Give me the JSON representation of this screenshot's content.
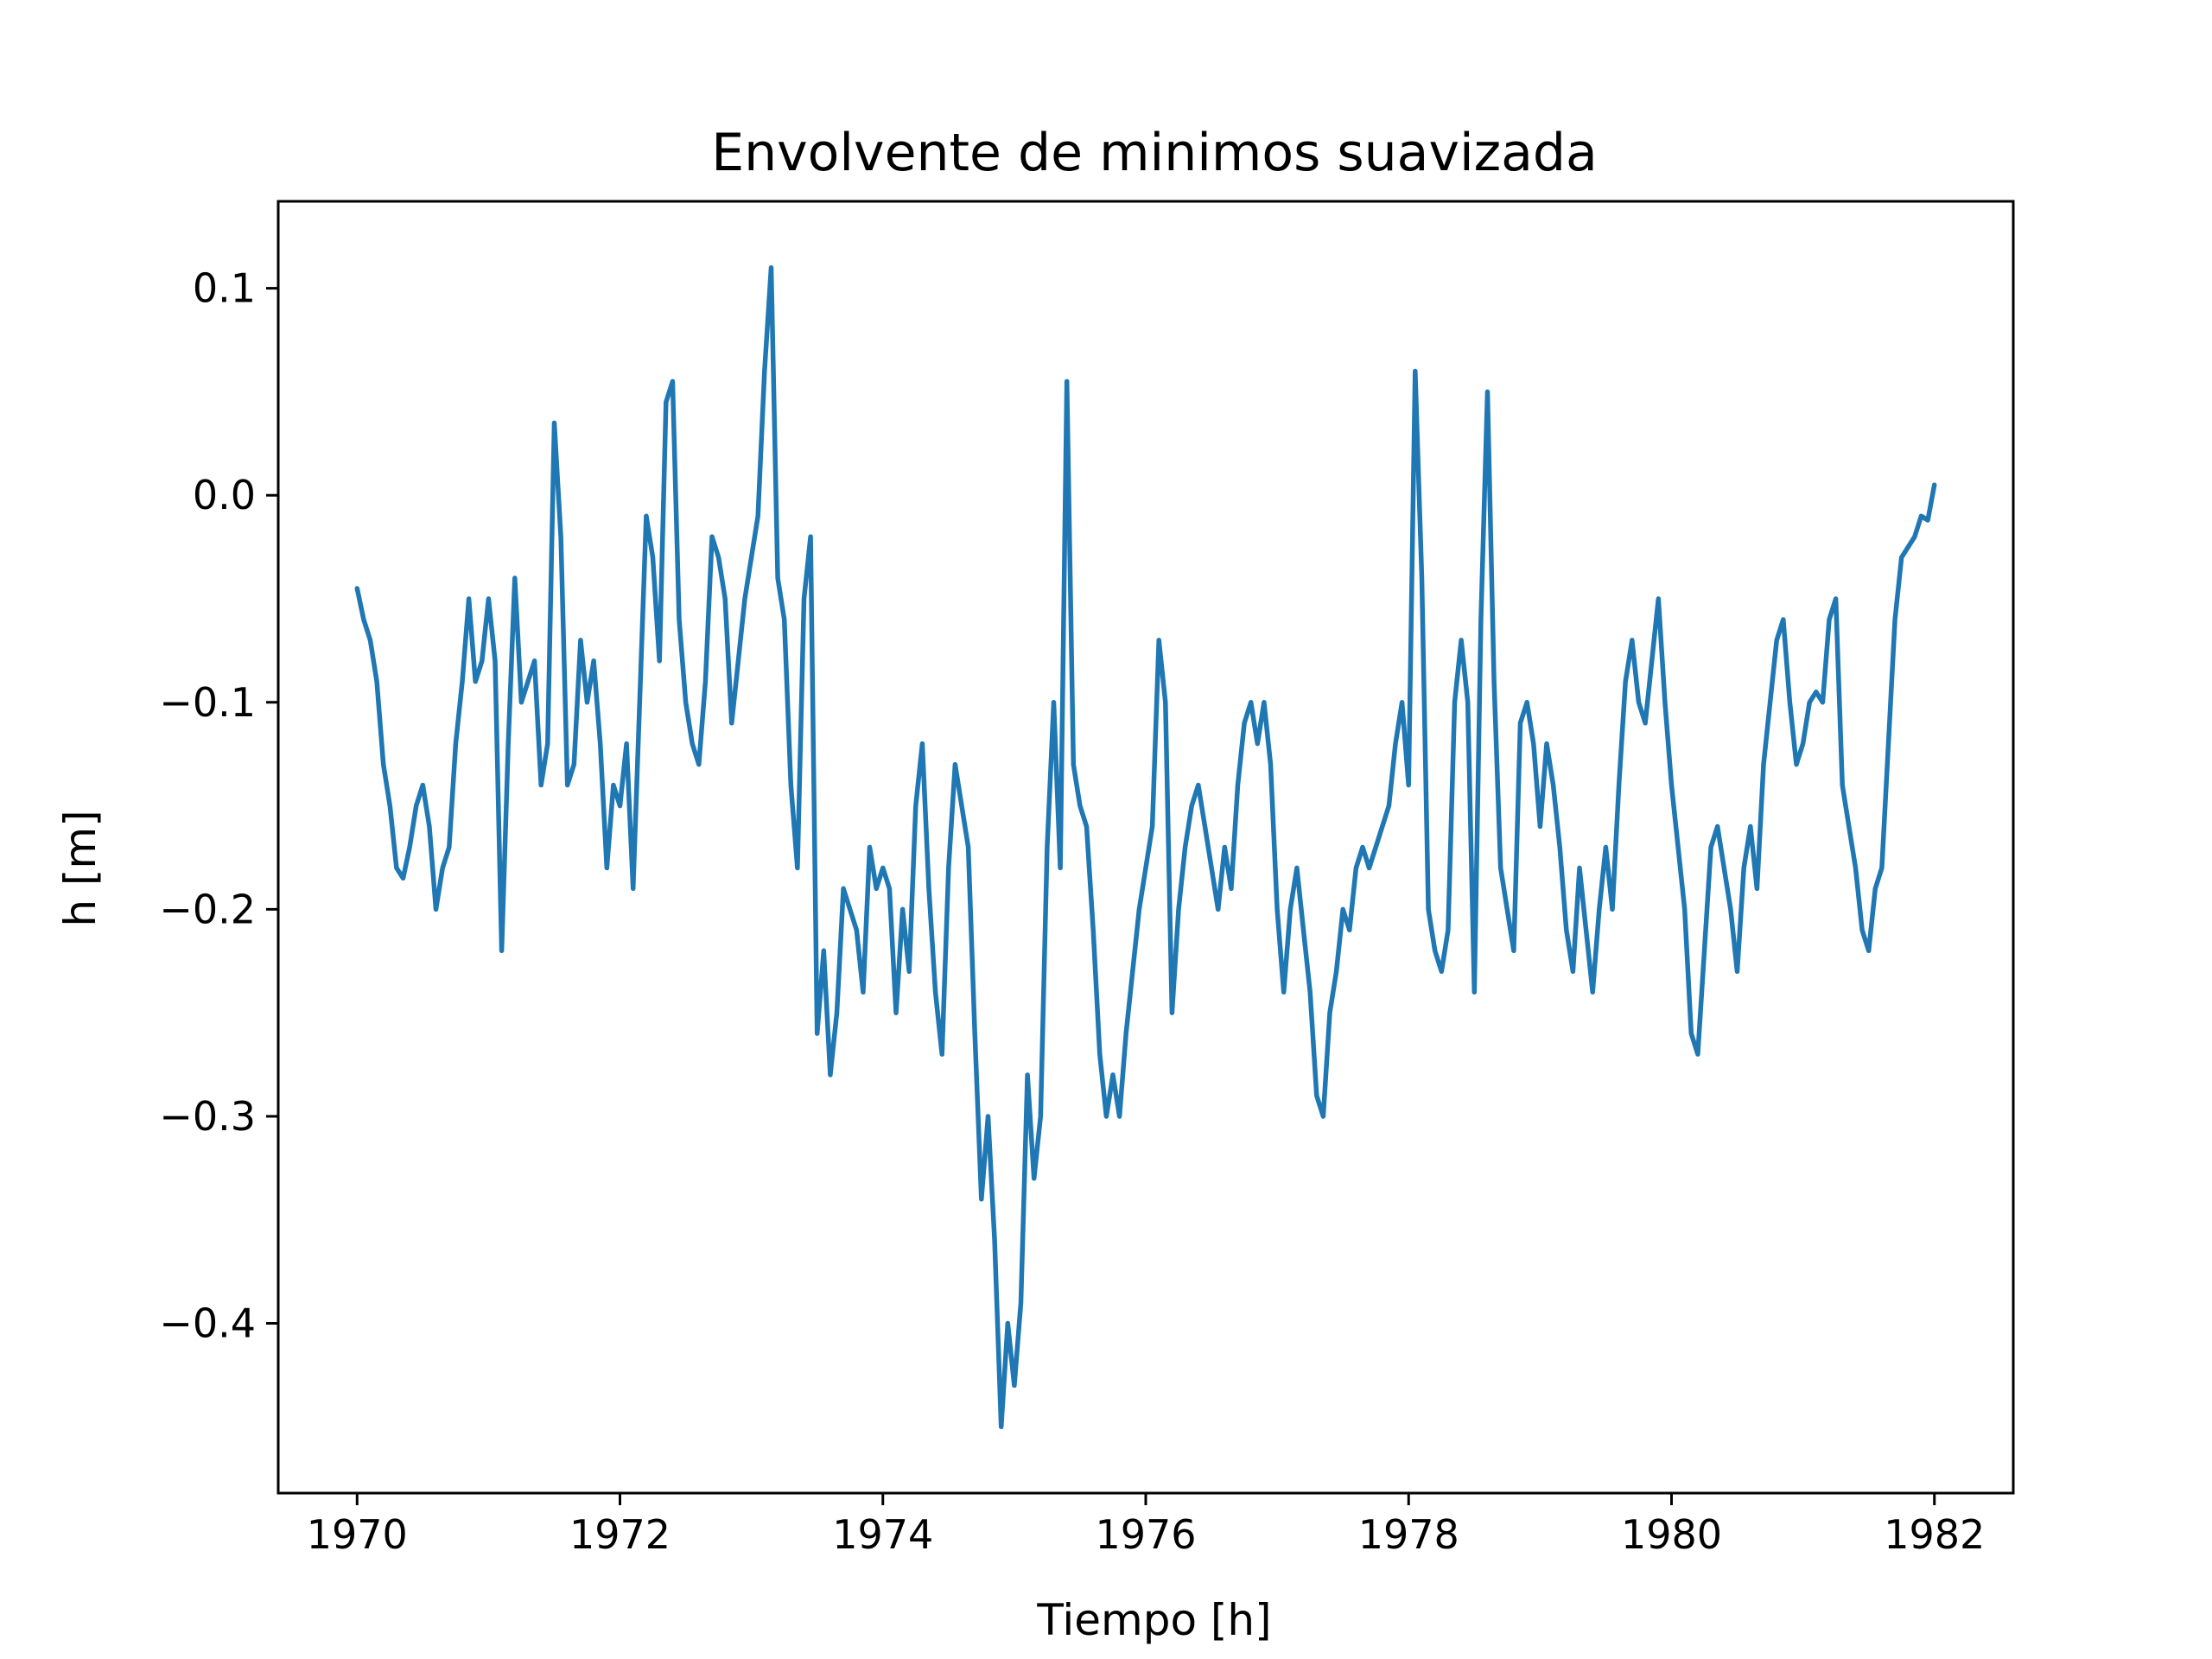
{
  "chart_data": {
    "type": "line",
    "title": "Envolvente de minimos suavizada",
    "xlabel": "Tiempo [h]",
    "ylabel": "h [m]",
    "xlim": [
      1969.4,
      1982.6
    ],
    "ylim": [
      -0.482,
      0.142
    ],
    "xticks": [
      1970,
      1972,
      1974,
      1976,
      1978,
      1980,
      1982
    ],
    "xtick_labels": [
      "1970",
      "1972",
      "1974",
      "1976",
      "1978",
      "1980",
      "1982"
    ],
    "yticks": [
      0.1,
      0.0,
      -0.1,
      -0.2,
      -0.3,
      -0.4
    ],
    "ytick_labels": [
      "0.1",
      "0.0",
      "−0.1",
      "−0.2",
      "−0.3",
      "−0.4"
    ],
    "grid": false,
    "series": [
      {
        "color": "#1f77b4",
        "x": [
          1970.0,
          1970.05,
          1970.1,
          1970.15,
          1970.2,
          1970.25,
          1970.3,
          1970.35,
          1970.4,
          1970.45,
          1970.5,
          1970.55,
          1970.6,
          1970.65,
          1970.7,
          1970.75,
          1970.8,
          1970.85,
          1970.9,
          1970.95,
          1971.0,
          1971.05,
          1971.1,
          1971.15,
          1971.2,
          1971.25,
          1971.3,
          1971.35,
          1971.4,
          1971.45,
          1971.5,
          1971.55,
          1971.6,
          1971.65,
          1971.7,
          1971.75,
          1971.8,
          1971.85,
          1971.9,
          1971.95,
          1972.0,
          1972.05,
          1972.1,
          1972.15,
          1972.2,
          1972.25,
          1972.3,
          1972.35,
          1972.4,
          1972.45,
          1972.5,
          1972.55,
          1972.6,
          1972.65,
          1972.7,
          1972.75,
          1972.8,
          1972.85,
          1972.9,
          1972.95,
          1973.0,
          1973.05,
          1973.1,
          1973.15,
          1973.2,
          1973.25,
          1973.3,
          1973.35,
          1973.4,
          1973.45,
          1973.5,
          1973.55,
          1973.6,
          1973.65,
          1973.7,
          1973.75,
          1973.8,
          1973.85,
          1973.9,
          1973.95,
          1974.0,
          1974.05,
          1974.1,
          1974.15,
          1974.2,
          1974.25,
          1974.3,
          1974.35,
          1974.4,
          1974.45,
          1974.5,
          1974.55,
          1974.6,
          1974.65,
          1974.7,
          1974.75,
          1974.8,
          1974.85,
          1974.9,
          1974.95,
          1975.0,
          1975.05,
          1975.1,
          1975.15,
          1975.2,
          1975.25,
          1975.3,
          1975.35,
          1975.4,
          1975.45,
          1975.5,
          1975.55,
          1975.6,
          1975.65,
          1975.7,
          1975.75,
          1975.8,
          1975.85,
          1975.9,
          1975.95,
          1976.0,
          1976.05,
          1976.1,
          1976.15,
          1976.2,
          1976.25,
          1976.3,
          1976.35,
          1976.4,
          1976.45,
          1976.5,
          1976.55,
          1976.6,
          1976.65,
          1976.7,
          1976.75,
          1976.8,
          1976.85,
          1976.9,
          1976.95,
          1977.0,
          1977.05,
          1977.1,
          1977.15,
          1977.2,
          1977.25,
          1977.3,
          1977.35,
          1977.4,
          1977.45,
          1977.5,
          1977.55,
          1977.6,
          1977.65,
          1977.7,
          1977.75,
          1977.8,
          1977.85,
          1977.9,
          1977.95,
          1978.0,
          1978.05,
          1978.1,
          1978.15,
          1978.2,
          1978.25,
          1978.3,
          1978.35,
          1978.4,
          1978.45,
          1978.5,
          1978.55,
          1978.6,
          1978.65,
          1978.7,
          1978.75,
          1978.8,
          1978.85,
          1978.9,
          1978.95,
          1979.0,
          1979.05,
          1979.1,
          1979.15,
          1979.2,
          1979.25,
          1979.3,
          1979.35,
          1979.4,
          1979.45,
          1979.5,
          1979.55,
          1979.6,
          1979.65,
          1979.7,
          1979.75,
          1979.8,
          1979.85,
          1979.9,
          1979.95,
          1980.0,
          1980.05,
          1980.1,
          1980.15,
          1980.2,
          1980.25,
          1980.3,
          1980.35,
          1980.4,
          1980.45,
          1980.5,
          1980.55,
          1980.6,
          1980.65,
          1980.7,
          1980.75,
          1980.8,
          1980.85,
          1980.9,
          1980.95,
          1981.0,
          1981.05,
          1981.1,
          1981.15,
          1981.2,
          1981.25,
          1981.3,
          1981.35,
          1981.4,
          1981.45,
          1981.5,
          1981.55,
          1981.6,
          1981.65,
          1981.7,
          1981.75,
          1981.8,
          1981.85,
          1981.9,
          1981.95,
          1982.0
        ],
        "values": [
          -0.045,
          -0.06,
          -0.07,
          -0.09,
          -0.13,
          -0.15,
          -0.18,
          -0.185,
          -0.17,
          -0.15,
          -0.14,
          -0.16,
          -0.2,
          -0.18,
          -0.17,
          -0.12,
          -0.09,
          -0.05,
          -0.09,
          -0.08,
          -0.05,
          -0.08,
          -0.22,
          -0.12,
          -0.04,
          -0.1,
          -0.09,
          -0.08,
          -0.14,
          -0.12,
          0.035,
          -0.02,
          -0.14,
          -0.13,
          -0.07,
          -0.1,
          -0.08,
          -0.12,
          -0.18,
          -0.14,
          -0.15,
          -0.12,
          -0.19,
          -0.1,
          -0.01,
          -0.03,
          -0.08,
          0.045,
          0.055,
          -0.06,
          -0.1,
          -0.12,
          -0.13,
          -0.09,
          -0.02,
          -0.03,
          -0.05,
          -0.11,
          -0.08,
          -0.05,
          -0.03,
          -0.01,
          0.06,
          0.11,
          -0.04,
          -0.06,
          -0.14,
          -0.18,
          -0.05,
          -0.02,
          -0.26,
          -0.22,
          -0.28,
          -0.25,
          -0.19,
          -0.2,
          -0.21,
          -0.24,
          -0.17,
          -0.19,
          -0.18,
          -0.19,
          -0.25,
          -0.2,
          -0.23,
          -0.15,
          -0.12,
          -0.19,
          -0.24,
          -0.27,
          -0.18,
          -0.13,
          -0.15,
          -0.17,
          -0.26,
          -0.34,
          -0.3,
          -0.36,
          -0.45,
          -0.4,
          -0.43,
          -0.39,
          -0.28,
          -0.33,
          -0.3,
          -0.17,
          -0.1,
          -0.18,
          0.055,
          -0.13,
          -0.15,
          -0.16,
          -0.21,
          -0.27,
          -0.3,
          -0.28,
          -0.3,
          -0.26,
          -0.23,
          -0.2,
          -0.18,
          -0.16,
          -0.07,
          -0.1,
          -0.25,
          -0.2,
          -0.17,
          -0.15,
          -0.14,
          -0.16,
          -0.18,
          -0.2,
          -0.17,
          -0.19,
          -0.14,
          -0.11,
          -0.1,
          -0.12,
          -0.1,
          -0.13,
          -0.2,
          -0.24,
          -0.2,
          -0.18,
          -0.21,
          -0.24,
          -0.29,
          -0.3,
          -0.25,
          -0.23,
          -0.2,
          -0.21,
          -0.18,
          -0.17,
          -0.18,
          -0.17,
          -0.16,
          -0.15,
          -0.12,
          -0.1,
          -0.14,
          0.06,
          -0.04,
          -0.2,
          -0.22,
          -0.23,
          -0.21,
          -0.1,
          -0.07,
          -0.1,
          -0.24,
          -0.06,
          0.05,
          -0.09,
          -0.18,
          -0.2,
          -0.22,
          -0.11,
          -0.1,
          -0.12,
          -0.16,
          -0.12,
          -0.14,
          -0.17,
          -0.21,
          -0.23,
          -0.18,
          -0.21,
          -0.24,
          -0.2,
          -0.17,
          -0.2,
          -0.14,
          -0.09,
          -0.07,
          -0.1,
          -0.11,
          -0.08,
          -0.05,
          -0.1,
          -0.14,
          -0.17,
          -0.2,
          -0.26,
          -0.27,
          -0.22,
          -0.17,
          -0.16,
          -0.18,
          -0.2,
          -0.23,
          -0.18,
          -0.16,
          -0.19,
          -0.13,
          -0.1,
          -0.07,
          -0.06,
          -0.1,
          -0.13,
          -0.12,
          -0.1,
          -0.095,
          -0.1,
          -0.06,
          -0.05,
          -0.14,
          -0.16,
          -0.18,
          -0.21,
          -0.22,
          -0.19,
          -0.18,
          -0.12,
          -0.06,
          -0.03,
          -0.025,
          -0.02,
          -0.01,
          -0.012,
          0.005
        ]
      }
    ]
  }
}
